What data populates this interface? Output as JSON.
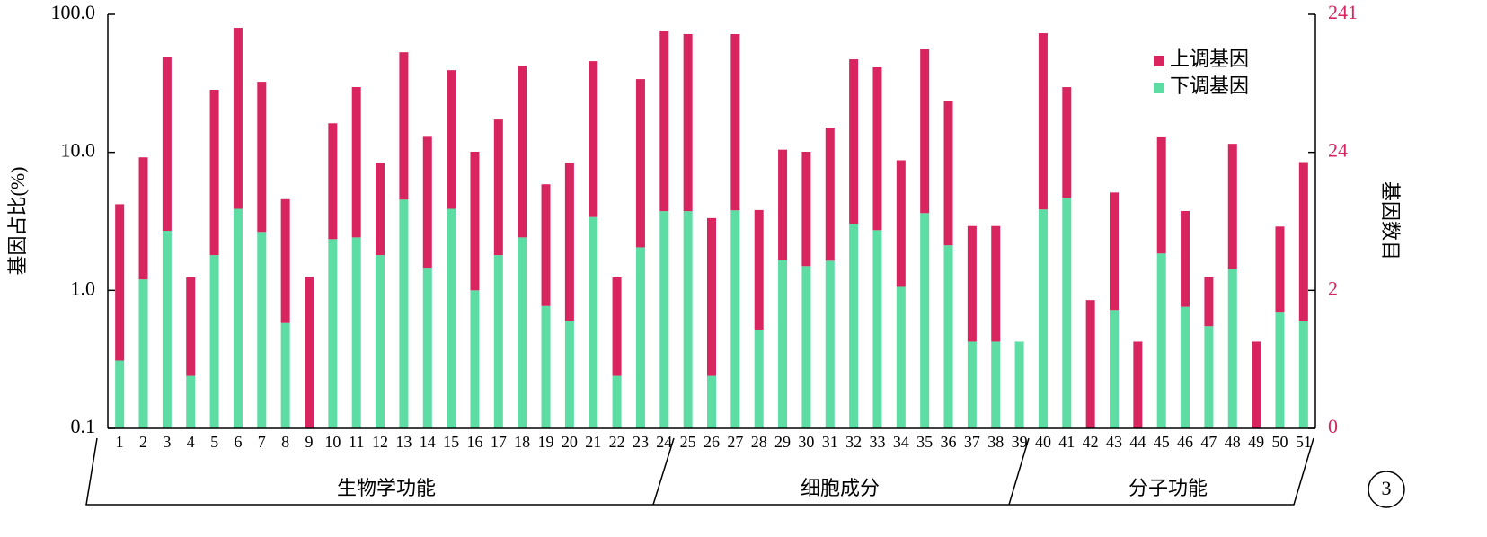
{
  "chart_data": {
    "type": "bar",
    "stacked": true,
    "log_scale": true,
    "y_label": "基因占比(%)",
    "y2_label": "基因数目",
    "categories": [
      "1",
      "2",
      "3",
      "4",
      "5",
      "6",
      "7",
      "8",
      "9",
      "10",
      "11",
      "12",
      "13",
      "14",
      "15",
      "16",
      "17",
      "18",
      "19",
      "20",
      "21",
      "22",
      "23",
      "24",
      "25",
      "26",
      "27",
      "28",
      "29",
      "30",
      "31",
      "32",
      "33",
      "34",
      "35",
      "36",
      "37",
      "38",
      "39",
      "40",
      "41",
      "42",
      "43",
      "44",
      "45",
      "46",
      "47",
      "48",
      "49",
      "50",
      "51"
    ],
    "series": [
      {
        "name": "上调基因",
        "color": "#d8255f",
        "values": [
          3.9,
          8.0,
          46.0,
          1.0,
          26.6,
          75.9,
          29.8,
          4.0,
          1.25,
          13.9,
          27.3,
          6.6,
          48.6,
          11.5,
          35.5,
          9.1,
          15.5,
          40.1,
          5.1,
          7.8,
          42.4,
          1.0,
          31.9,
          72.5,
          68.2,
          3.1,
          68.1,
          3.3,
          8.8,
          8.6,
          13.5,
          44.2,
          38.6,
          7.7,
          52.1,
          21.6,
          2.5,
          2.5,
          0,
          69.1,
          25.0,
          0.85,
          4.4,
          0.425,
          11.0,
          3.0,
          0.7,
          10.1,
          0.425,
          2.2,
          7.9
        ]
      },
      {
        "name": "下调基因",
        "color": "#5ddca3",
        "values": [
          0.31,
          1.2,
          2.7,
          0.24,
          1.8,
          3.9,
          2.65,
          0.58,
          0,
          2.35,
          2.42,
          1.8,
          4.55,
          1.46,
          3.9,
          1.0,
          1.8,
          2.42,
          0.77,
          0.6,
          3.4,
          0.24,
          2.05,
          3.75,
          3.75,
          0.24,
          3.8,
          0.52,
          1.66,
          1.5,
          1.64,
          3.03,
          2.73,
          1.06,
          3.63,
          2.12,
          0.425,
          0.425,
          0.425,
          3.86,
          4.69,
          0,
          0.72,
          0,
          1.85,
          0.76,
          0.55,
          1.43,
          0,
          0.7,
          0.6
        ]
      }
    ],
    "ylim": [
      0.1,
      100
    ],
    "yticks": [
      {
        "value": 100,
        "label": "100.0"
      },
      {
        "value": 10,
        "label": "10.0"
      },
      {
        "value": 1,
        "label": "1.0"
      },
      0.1
    ],
    "y2lim": [
      0.241,
      241
    ],
    "y2ticks": [
      241,
      {
        "value": 24.1,
        "label": "24"
      },
      {
        "value": 2.41,
        "label": "2"
      },
      {
        "value": 0.241,
        "label": "0"
      }
    ],
    "y2_color": "#d8255f",
    "groups": [
      "生物学功能",
      "细胞成分",
      "分子功能"
    ],
    "legend": "upper right",
    "panel_label": "3"
  }
}
